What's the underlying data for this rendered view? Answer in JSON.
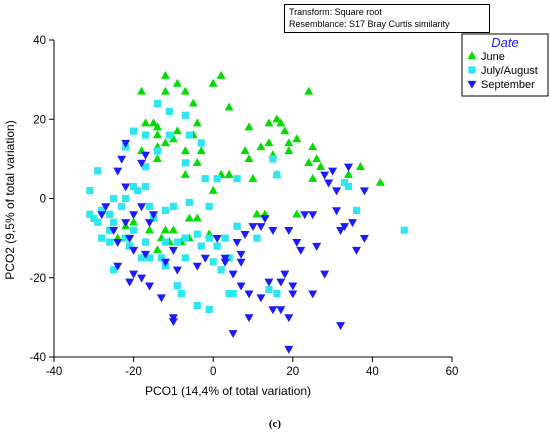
{
  "info_box": {
    "transform": "Transform: Square root",
    "resemblance": "Resemblance: S17 Bray Curtis similarity"
  },
  "caption": "(c)",
  "chart_data": {
    "type": "scatter",
    "xlabel": "PCO1 (14,4% of total variation)",
    "ylabel": "PCO2 (9,5% of total variation)",
    "xlim": [
      -40,
      60
    ],
    "ylim": [
      -40,
      40
    ],
    "xticks": [
      -40,
      -20,
      0,
      20,
      40,
      60
    ],
    "yticks": [
      -40,
      -20,
      0,
      20,
      40
    ],
    "grid": false,
    "legend": {
      "title": "Date",
      "position": "top-right"
    },
    "series": [
      {
        "name": "June",
        "marker": "triangle-up",
        "color": "#00dd00",
        "points": [
          [
            -12,
            31
          ],
          [
            -9,
            29
          ],
          [
            0,
            29
          ],
          [
            2,
            31
          ],
          [
            -18,
            27
          ],
          [
            -12,
            27
          ],
          [
            -7,
            27
          ],
          [
            24,
            27
          ],
          [
            -5,
            24
          ],
          [
            -9,
            17
          ],
          [
            -17,
            19
          ],
          [
            -15,
            19
          ],
          [
            -14,
            18
          ],
          [
            -14,
            16
          ],
          [
            -10,
            15
          ],
          [
            -5,
            16
          ],
          [
            -4,
            19
          ],
          [
            4,
            23
          ],
          [
            -18,
            12
          ],
          [
            -14,
            13
          ],
          [
            -12,
            14
          ],
          [
            -7,
            12
          ],
          [
            -3,
            12
          ],
          [
            -14,
            10
          ],
          [
            -4,
            9
          ],
          [
            9,
            18
          ],
          [
            14,
            19
          ],
          [
            16,
            20
          ],
          [
            17,
            19
          ],
          [
            18,
            17
          ],
          [
            14,
            14
          ],
          [
            19,
            14
          ],
          [
            21,
            15
          ],
          [
            12,
            13
          ],
          [
            25,
            13
          ],
          [
            8,
            12
          ],
          [
            15,
            11
          ],
          [
            19,
            12
          ],
          [
            9,
            10
          ],
          [
            26,
            10
          ],
          [
            24,
            9
          ],
          [
            4,
            6
          ],
          [
            27,
            8
          ],
          [
            37,
            8
          ],
          [
            42,
            4
          ],
          [
            25,
            5
          ],
          [
            -7,
            6
          ],
          [
            2,
            6
          ],
          [
            10,
            5
          ],
          [
            16,
            6
          ],
          [
            34,
            6
          ],
          [
            0,
            2
          ],
          [
            -6,
            -5
          ],
          [
            -4,
            -5
          ],
          [
            -20,
            -6
          ],
          [
            -22,
            -7
          ],
          [
            -16,
            -8
          ],
          [
            -12,
            -8
          ],
          [
            -10,
            -8
          ],
          [
            -1,
            -9
          ],
          [
            11,
            -4
          ],
          [
            13,
            -4
          ],
          [
            21,
            -4
          ],
          [
            -24,
            -10
          ],
          [
            -13,
            -10
          ],
          [
            -11,
            -11
          ],
          [
            -8,
            -11
          ],
          [
            -6,
            -10
          ],
          [
            -14,
            -13
          ],
          [
            -21,
            -12
          ]
        ]
      },
      {
        "name": "July/August",
        "marker": "square",
        "color": "#2ee6f0",
        "points": [
          [
            -14,
            24
          ],
          [
            -11,
            22
          ],
          [
            -7,
            21
          ],
          [
            -20,
            17
          ],
          [
            -6,
            16
          ],
          [
            -17,
            16
          ],
          [
            -11,
            16
          ],
          [
            -7,
            9
          ],
          [
            -3,
            14
          ],
          [
            -14,
            12
          ],
          [
            -22,
            13
          ],
          [
            -17,
            8
          ],
          [
            15,
            10
          ],
          [
            -29,
            7
          ],
          [
            -31,
            2
          ],
          [
            -20,
            3
          ],
          [
            -19,
            2
          ],
          [
            -22,
            0
          ],
          [
            -25,
            0
          ],
          [
            -17,
            3
          ],
          [
            -16,
            -2
          ],
          [
            -20,
            -8
          ],
          [
            -25,
            -6
          ],
          [
            -23,
            -2
          ],
          [
            -28,
            -3
          ],
          [
            -31,
            -4
          ],
          [
            -30,
            -5
          ],
          [
            -26,
            -4
          ],
          [
            -29,
            -6
          ],
          [
            -26,
            -8
          ],
          [
            -17,
            -11
          ],
          [
            -22,
            -10
          ],
          [
            -28,
            -10
          ],
          [
            -26,
            -11
          ],
          [
            -21,
            -12
          ],
          [
            -18,
            -15
          ],
          [
            -16,
            -15
          ],
          [
            -12,
            -11
          ],
          [
            -9,
            -11
          ],
          [
            -7,
            -10
          ],
          [
            -4,
            -9
          ],
          [
            -1,
            -10
          ],
          [
            -13,
            -15
          ],
          [
            -25,
            -18
          ],
          [
            -12,
            -17
          ],
          [
            -7,
            -15
          ],
          [
            4,
            -15
          ],
          [
            6,
            -7
          ],
          [
            1,
            -12
          ],
          [
            -3,
            -12
          ],
          [
            0,
            -16
          ],
          [
            2,
            -18
          ],
          [
            -9,
            -22
          ],
          [
            -8,
            -24
          ],
          [
            4,
            -24
          ],
          [
            5,
            -24
          ],
          [
            14,
            -23
          ],
          [
            16,
            -24
          ],
          [
            -4,
            -27
          ],
          [
            -1,
            -28
          ],
          [
            6,
            5
          ],
          [
            1,
            5
          ],
          [
            16,
            6
          ],
          [
            34,
            3
          ],
          [
            33,
            4
          ],
          [
            36,
            -3
          ],
          [
            48,
            -8
          ],
          [
            11,
            -10
          ],
          [
            3,
            -10
          ],
          [
            -12,
            -3
          ],
          [
            -15,
            -5
          ],
          [
            -10,
            -2
          ],
          [
            -6,
            -1
          ],
          [
            -1,
            -2
          ],
          [
            -2,
            5
          ]
        ]
      },
      {
        "name": "September",
        "marker": "triangle-down",
        "color": "#1a1aff",
        "points": [
          [
            -18,
            9
          ],
          [
            -17,
            11
          ],
          [
            -22,
            14
          ],
          [
            -23,
            10
          ],
          [
            -24,
            7
          ],
          [
            -22,
            3
          ],
          [
            -27,
            -2
          ],
          [
            -28,
            -4
          ],
          [
            -25,
            -8
          ],
          [
            -22,
            -6
          ],
          [
            -24,
            -11
          ],
          [
            -21,
            -10
          ],
          [
            -20,
            -13
          ],
          [
            -24,
            -17
          ],
          [
            -20,
            -19
          ],
          [
            -18,
            -20
          ],
          [
            -16,
            -22
          ],
          [
            -13,
            -25
          ],
          [
            -10,
            -31
          ],
          [
            -10,
            -30
          ],
          [
            -4,
            -17
          ],
          [
            -2,
            -15
          ],
          [
            3,
            -16
          ],
          [
            5,
            -19
          ],
          [
            1,
            -10
          ],
          [
            3,
            -15
          ],
          [
            7,
            -16
          ],
          [
            7,
            -22
          ],
          [
            9,
            -24
          ],
          [
            12,
            -25
          ],
          [
            14,
            -21
          ],
          [
            17,
            -21
          ],
          [
            18,
            -19
          ],
          [
            20,
            -22
          ],
          [
            20,
            -24
          ],
          [
            15,
            -28
          ],
          [
            17,
            -28
          ],
          [
            19,
            -30
          ],
          [
            9,
            -30
          ],
          [
            5,
            -34
          ],
          [
            19,
            -38
          ],
          [
            25,
            -24
          ],
          [
            28,
            -19
          ],
          [
            26,
            -12
          ],
          [
            22,
            -13
          ],
          [
            21,
            -11
          ],
          [
            19,
            -8
          ],
          [
            10,
            -7
          ],
          [
            15,
            -8
          ],
          [
            8,
            -9
          ],
          [
            6,
            -11
          ],
          [
            7,
            -14
          ],
          [
            12,
            -7
          ],
          [
            13,
            -5
          ],
          [
            25,
            -4
          ],
          [
            23,
            -4
          ],
          [
            29,
            4
          ],
          [
            31,
            -3
          ],
          [
            33,
            -7
          ],
          [
            35,
            -6
          ],
          [
            34,
            8
          ],
          [
            30,
            7
          ],
          [
            28,
            6
          ],
          [
            31,
            2
          ],
          [
            38,
            2
          ],
          [
            32,
            -8
          ],
          [
            36,
            -13
          ],
          [
            38,
            -10
          ],
          [
            32,
            -32
          ],
          [
            -21,
            -21
          ],
          [
            -10,
            -13
          ],
          [
            -12,
            -16
          ],
          [
            -17,
            -14
          ],
          [
            -9,
            -18
          ],
          [
            -16,
            -6
          ],
          [
            -18,
            -2
          ],
          [
            -20,
            -4
          ],
          [
            -15,
            -4
          ]
        ]
      }
    ]
  }
}
